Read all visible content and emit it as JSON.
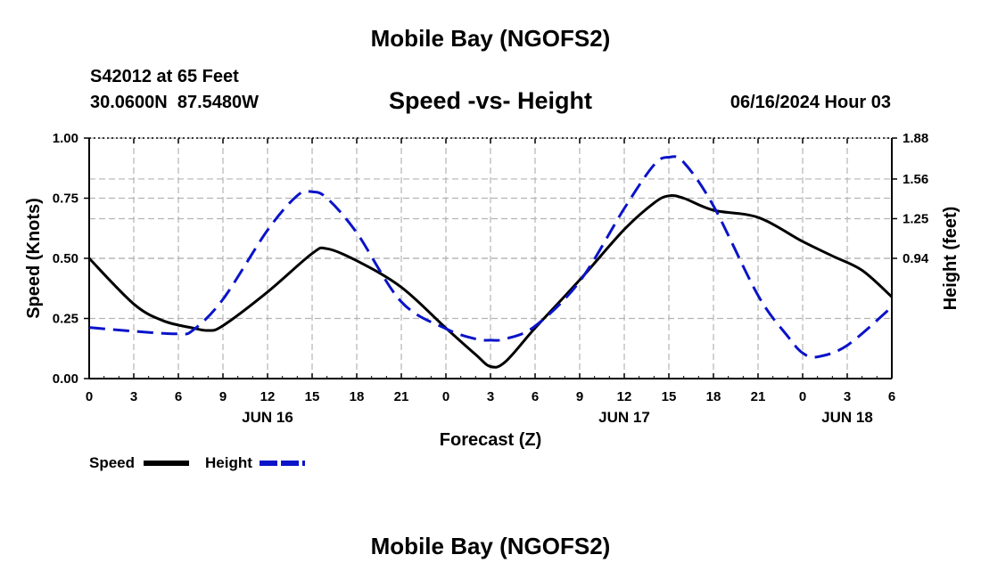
{
  "header": {
    "title": "Mobile Bay (NGOFS2)",
    "station": "S42012 at 65 Feet",
    "coords": "30.0600N  87.5480W",
    "subtitle": "Speed -vs- Height",
    "datetime": "06/16/2024 Hour 03"
  },
  "footer": {
    "title": "Mobile Bay (NGOFS2)"
  },
  "colors": {
    "speed": "#000000",
    "height": "#0a14c8",
    "grid": "#b4b4b4"
  },
  "chart_data": {
    "type": "line",
    "title": "Speed -vs- Height",
    "xlabel": "Forecast (Z)",
    "ylabel": "Speed (Knots)",
    "ylabel_right": "Height (feet)",
    "x_unit": "forecast hour",
    "xlim": [
      0,
      54
    ],
    "ylim": [
      0,
      1.0
    ],
    "ylim_right": [
      0,
      1.88
    ],
    "x_ticks": [
      0,
      3,
      6,
      9,
      12,
      15,
      18,
      21,
      24,
      27,
      30,
      33,
      36,
      39,
      42,
      45,
      48,
      51,
      54
    ],
    "x_tick_labels": [
      "0",
      "3",
      "6",
      "9",
      "12",
      "15",
      "18",
      "21",
      "0",
      "3",
      "6",
      "9",
      "12",
      "15",
      "18",
      "21",
      "0",
      "3",
      "6"
    ],
    "day_labels": [
      {
        "x": 12,
        "label": "JUN 16"
      },
      {
        "x": 36,
        "label": "JUN 17"
      },
      {
        "x": 51,
        "label": "JUN 18"
      }
    ],
    "y_ticks": [
      0,
      0.25,
      0.5,
      0.75,
      1.0
    ],
    "y_tick_labels": [
      "0.00",
      "0.25",
      "0.50",
      "0.75",
      "1.00"
    ],
    "y_ticks_right": [
      0.94,
      1.25,
      1.56,
      1.88
    ],
    "y_tick_labels_right": [
      "0.94",
      "1.25",
      "1.56",
      "1.88"
    ],
    "grid": true,
    "legend": [
      {
        "name": "Speed",
        "style": "solid"
      },
      {
        "name": "Height",
        "style": "dashed"
      }
    ],
    "series": [
      {
        "name": "Speed",
        "axis": "left",
        "x": [
          0,
          3,
          5,
          7,
          8,
          9,
          12,
          15,
          16,
          18,
          21,
          24,
          26,
          27,
          28,
          30,
          33,
          36,
          38,
          39,
          40,
          42,
          45,
          48,
          50,
          52,
          54
        ],
        "values": [
          0.5,
          0.31,
          0.24,
          0.21,
          0.2,
          0.22,
          0.36,
          0.52,
          0.54,
          0.49,
          0.38,
          0.21,
          0.1,
          0.05,
          0.07,
          0.21,
          0.41,
          0.62,
          0.73,
          0.76,
          0.75,
          0.7,
          0.67,
          0.57,
          0.51,
          0.45,
          0.34
        ]
      },
      {
        "name": "Height",
        "axis": "right",
        "x": [
          0,
          3,
          6,
          7,
          9,
          12,
          14,
          15,
          16,
          18,
          21,
          24,
          26,
          27,
          28,
          30,
          33,
          36,
          38,
          39,
          40,
          42,
          45,
          47,
          48,
          49,
          51,
          54
        ],
        "values": [
          0.4,
          0.37,
          0.35,
          0.38,
          0.62,
          1.16,
          1.43,
          1.46,
          1.41,
          1.14,
          0.6,
          0.39,
          0.31,
          0.3,
          0.31,
          0.41,
          0.76,
          1.33,
          1.67,
          1.73,
          1.69,
          1.35,
          0.65,
          0.33,
          0.2,
          0.17,
          0.26,
          0.56
        ]
      }
    ]
  }
}
